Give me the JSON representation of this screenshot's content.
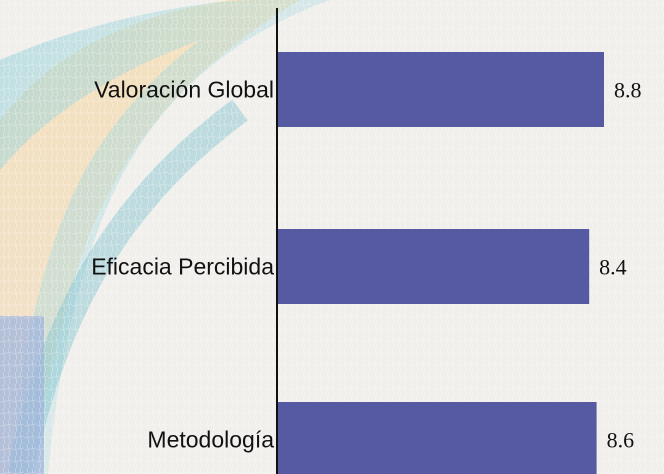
{
  "chart_data": {
    "type": "bar",
    "orientation": "horizontal",
    "categories": [
      "Valoración Global",
      "Eficacia Percibida",
      "Metodología"
    ],
    "values": [
      8.8,
      8.4,
      8.6
    ],
    "data_labels": [
      "8.8",
      "8.4",
      "8.6"
    ],
    "bar_color": "#4a4f9c",
    "grid": false,
    "legend": "none"
  }
}
